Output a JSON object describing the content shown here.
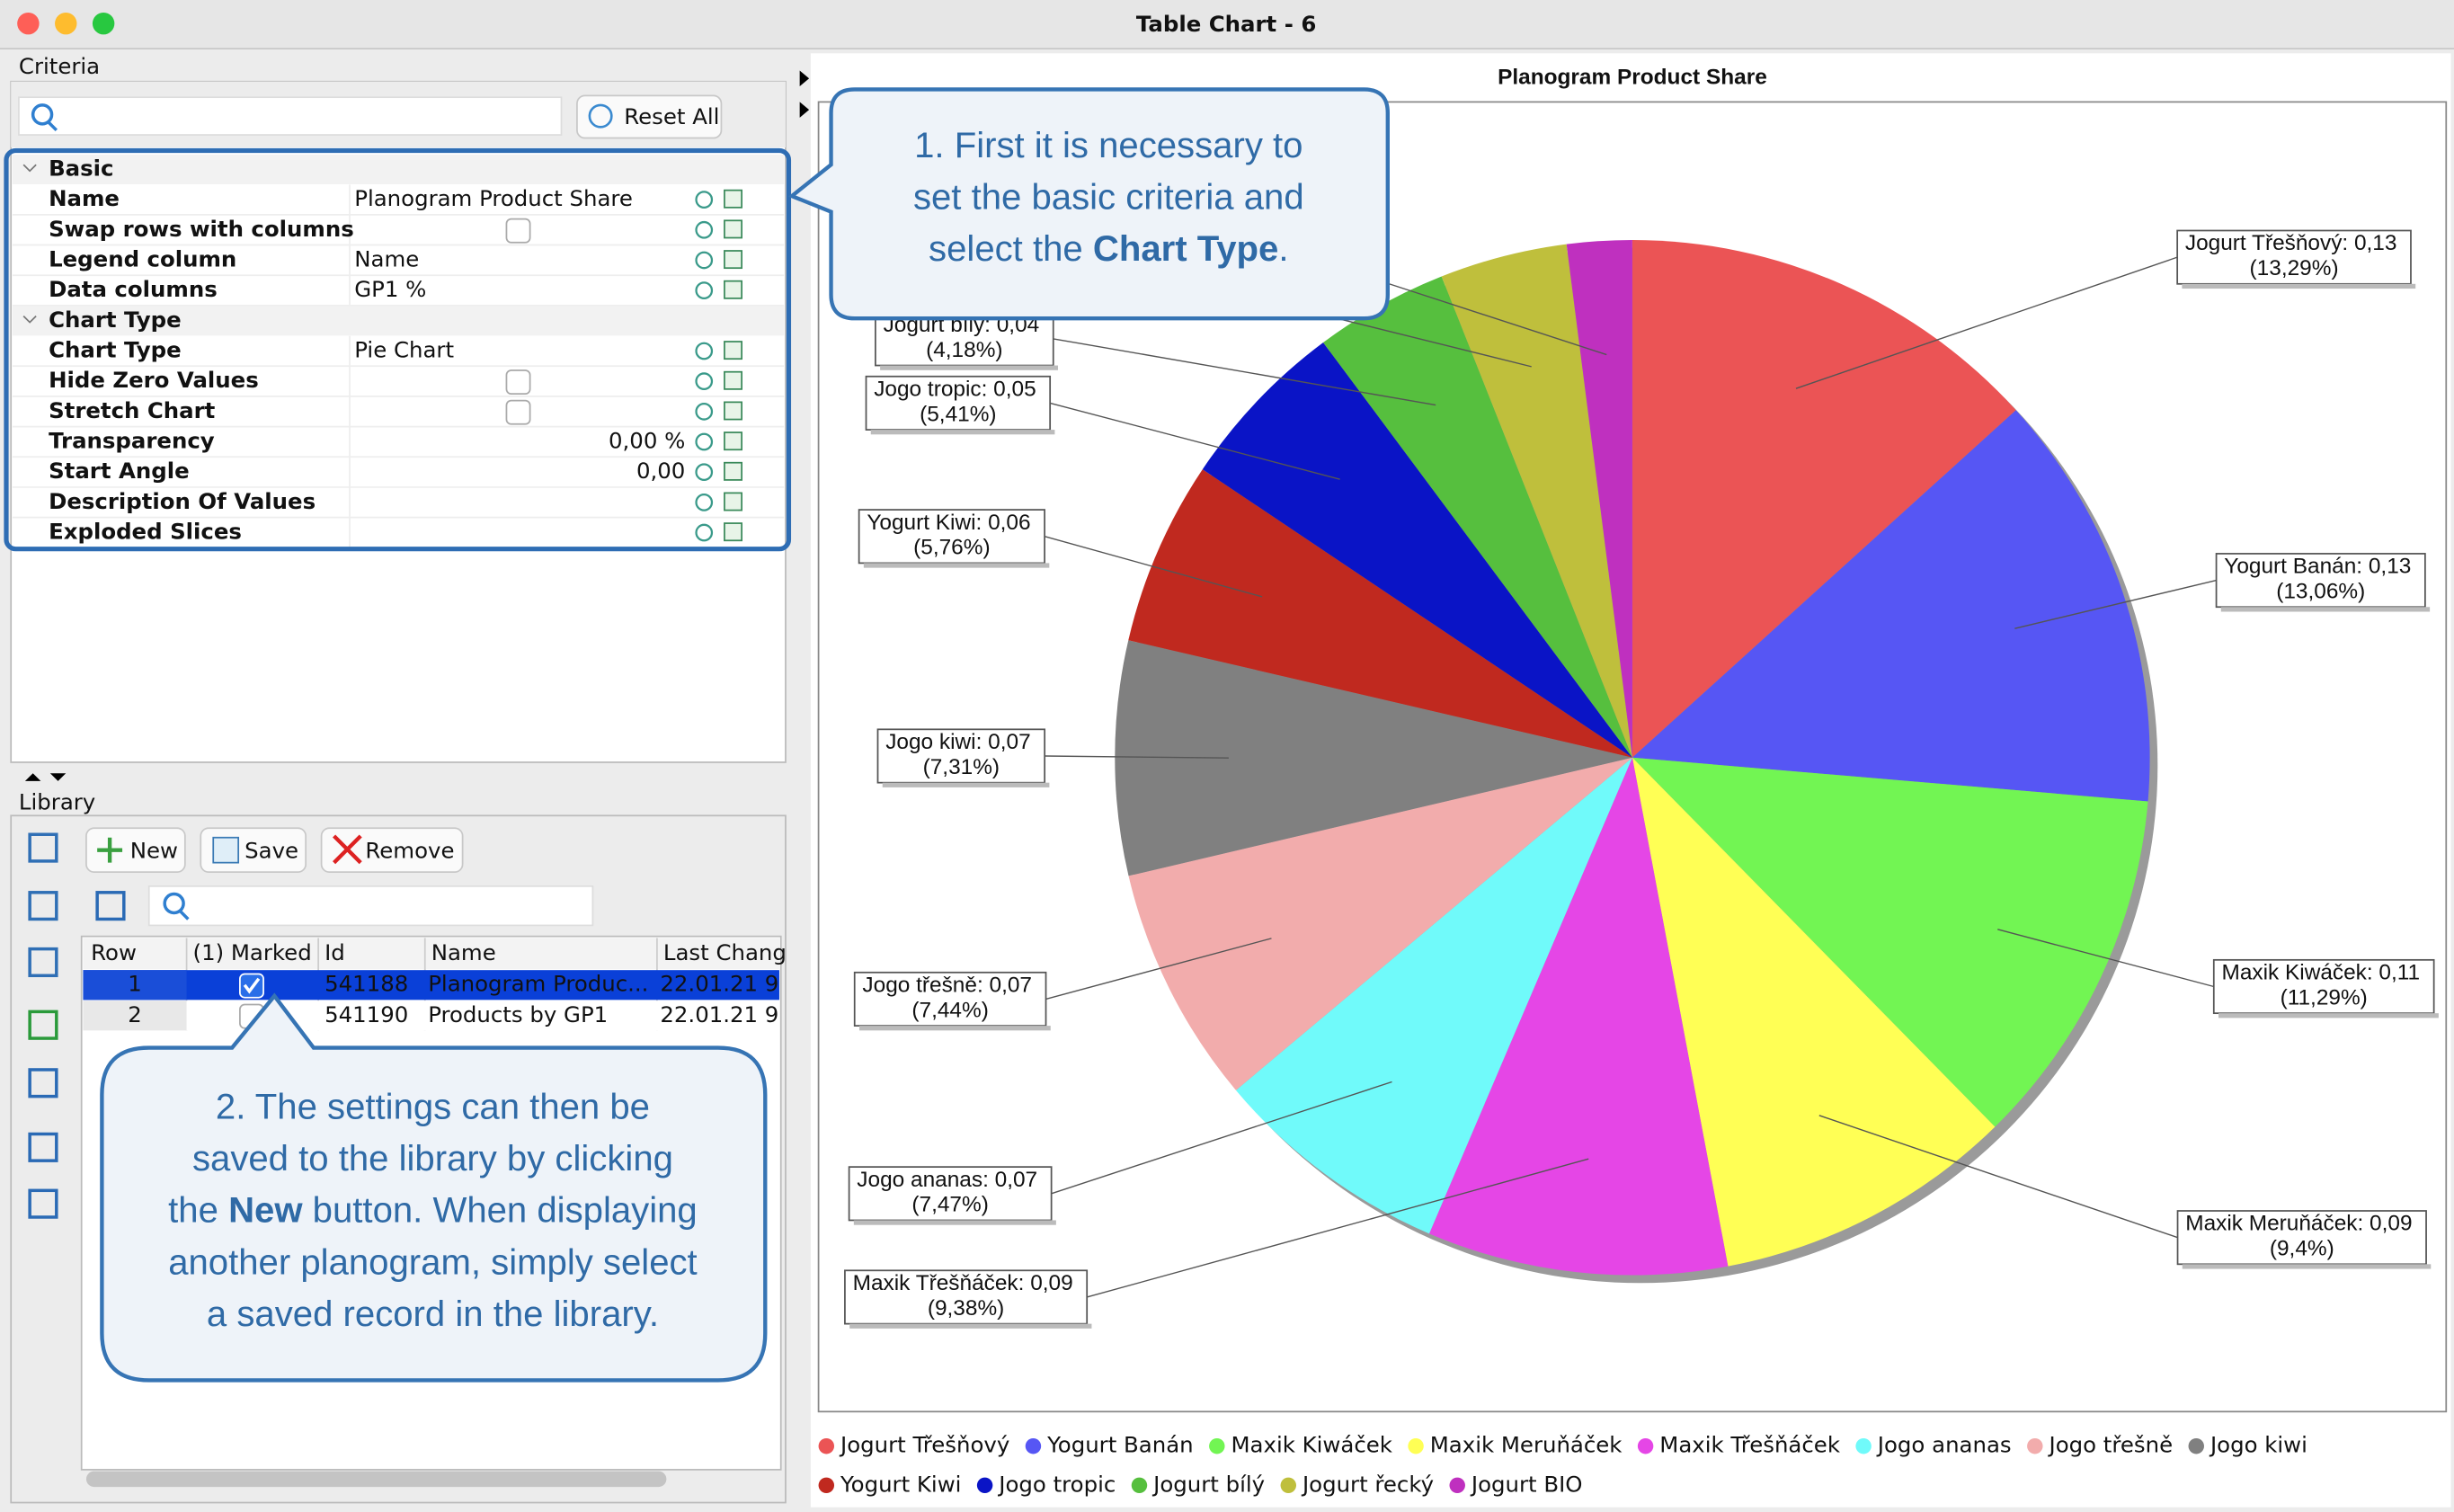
{
  "window": {
    "title": "Table Chart - 6"
  },
  "criteria": {
    "title": "Criteria",
    "reset": "Reset All",
    "groups": [
      {
        "name": "Basic",
        "rows": [
          {
            "name": "Name",
            "value": "Planogram Product Share"
          },
          {
            "name": "Swap rows with columns",
            "checked": false
          },
          {
            "name": "Legend column",
            "value": "Name"
          },
          {
            "name": "Data columns",
            "value": "GP1 %"
          }
        ]
      },
      {
        "name": "Chart Type",
        "rows": [
          {
            "name": "Chart Type",
            "value": "Pie Chart"
          },
          {
            "name": "Hide Zero Values",
            "checked": false
          },
          {
            "name": "Stretch Chart",
            "checked": false
          },
          {
            "name": "Transparency",
            "number": "0,00 %"
          },
          {
            "name": "Start Angle",
            "number": "0,00"
          },
          {
            "name": "Description Of Values"
          },
          {
            "name": "Exploded Slices"
          }
        ]
      }
    ]
  },
  "library": {
    "title": "Library",
    "buttons": [
      "New",
      "Save",
      "Remove"
    ],
    "columns": [
      "Row",
      "(1) Marked",
      "Id",
      "Name",
      "Last Chang"
    ],
    "rows": [
      {
        "row": 1,
        "marked": true,
        "selected": true,
        "id": 541188,
        "name": "Planogram Produc...",
        "changed": "22.01.21 9"
      },
      {
        "row": 2,
        "marked": false,
        "selected": false,
        "id": 541190,
        "name": "Products by GP1",
        "changed": "22.01.21 9"
      }
    ]
  },
  "callouts": [
    {
      "lines": [
        [
          "1. First it is necessary to"
        ],
        [
          "set the basic criteria and"
        ],
        [
          "select the ",
          {
            "b": "Chart Type"
          },
          "."
        ]
      ]
    },
    {
      "lines": [
        [
          "2. The settings can then be"
        ],
        [
          "saved to the library by clicking"
        ],
        [
          "the ",
          {
            "b": "New"
          },
          " button. When displaying"
        ],
        [
          "another planogram, simply select"
        ],
        [
          "a saved record in the library."
        ]
      ]
    }
  ],
  "chart_data": {
    "type": "pie",
    "title": "Planogram Product Share",
    "categories": [
      "Jogurt Třešňový",
      "Yogurt Banán",
      "Maxik Kiwáček",
      "Maxik Meruňáček",
      "Maxik Třešňáček",
      "Jogo ananas",
      "Jogo třešně",
      "Jogo kiwi",
      "Yogurt Kiwi",
      "Jogo tropic",
      "Jogurt bílý",
      "Jogurt řecký",
      "Jogurt BIO"
    ],
    "values": [
      13.29,
      13.06,
      11.29,
      9.4,
      9.38,
      7.47,
      7.44,
      7.31,
      5.76,
      5.41,
      4.18,
      3.98,
      2.03
    ],
    "value_labels": [
      "Jogurt Třešňový: 0,13 (13,29%)",
      "Yogurt Banán: 0,13 (13,06%)",
      "Maxik Kiwáček: 0,11 (11,29%)",
      "Maxik Meruňáček: 0,09 (9,4%)",
      "Maxik Třešňáček: 0,09 (9,38%)",
      "Jogo ananas: 0,07 (7,47%)",
      "Jogo třešně: 0,07 (7,44%)",
      "Jogo kiwi: 0,07 (7,31%)",
      "Yogurt Kiwi: 0,06 (5,76%)",
      "Jogo tropic: 0,05 (5,41%)",
      "Jogurt bílý: 0,04 (4,18%)",
      null,
      null
    ],
    "colors": [
      "#eb5455",
      "#5656f4",
      "#72f553",
      "#ffff55",
      "#e546e6",
      "#70fafa",
      "#f2acac",
      "#808080",
      "#c0291f",
      "#0a14c6",
      "#56bf3e",
      "#bfbf3c",
      "#bf30bf"
    ],
    "legend": "bottom"
  }
}
